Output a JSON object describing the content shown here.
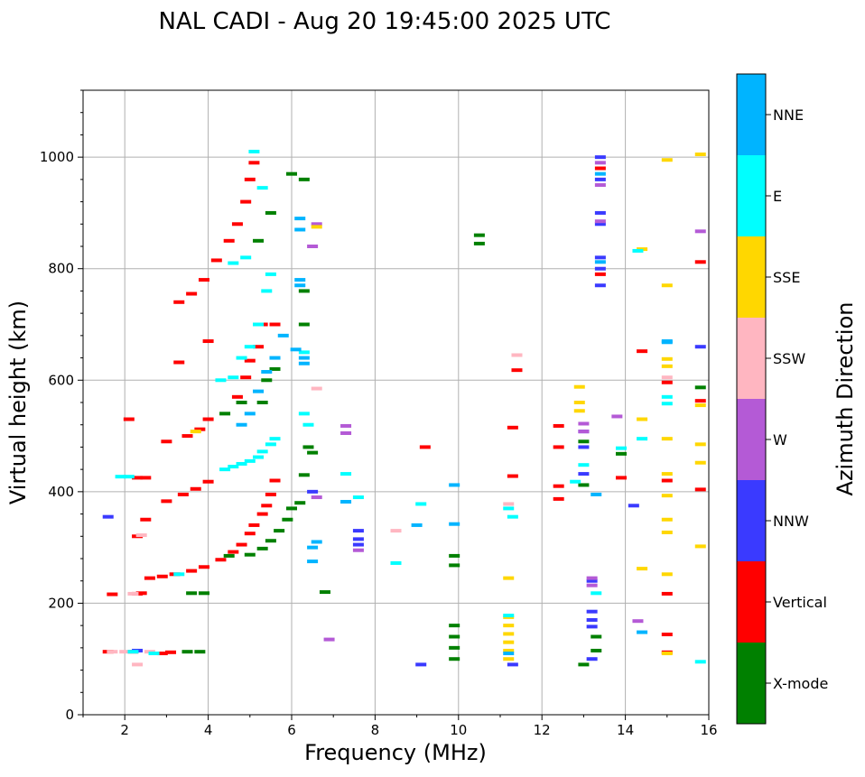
{
  "chart_data": {
    "type": "scatter",
    "title": "NAL CADI - Aug 20 19:45:00 2025 UTC",
    "xlabel": "Frequency (MHz)",
    "ylabel": "Virtual height (km)",
    "xlim": [
      1,
      16
    ],
    "ylim": [
      0,
      1120
    ],
    "xticks": [
      2,
      4,
      6,
      8,
      10,
      12,
      14,
      16
    ],
    "yticks": [
      0,
      200,
      400,
      600,
      800,
      1000
    ],
    "grid": true,
    "colorbar": {
      "label": "Azimuth Direction",
      "legend_position": "right",
      "categories": [
        {
          "name": "X-mode",
          "color": "#008000"
        },
        {
          "name": "Vertical",
          "color": "#ff0000"
        },
        {
          "name": "NNW",
          "color": "#3a3aff"
        },
        {
          "name": "W",
          "color": "#b45ad6"
        },
        {
          "name": "SSW",
          "color": "#ffb6c1"
        },
        {
          "name": "SSE",
          "color": "#ffd700"
        },
        {
          "name": "E",
          "color": "#00ffff"
        },
        {
          "name": "NNE",
          "color": "#00b4ff"
        }
      ]
    },
    "series": [
      {
        "name": "Vertical",
        "color": "#ff0000",
        "points": [
          [
            1.6,
            113
          ],
          [
            2.2,
            113
          ],
          [
            2.9,
            110
          ],
          [
            3.1,
            112
          ],
          [
            1.7,
            216
          ],
          [
            2.3,
            217
          ],
          [
            2.4,
            218
          ],
          [
            2.6,
            245
          ],
          [
            2.9,
            248
          ],
          [
            3.2,
            252
          ],
          [
            3.6,
            258
          ],
          [
            3.9,
            265
          ],
          [
            4.3,
            278
          ],
          [
            4.6,
            292
          ],
          [
            4.8,
            305
          ],
          [
            5.0,
            325
          ],
          [
            5.1,
            340
          ],
          [
            5.3,
            360
          ],
          [
            5.4,
            375
          ],
          [
            5.5,
            395
          ],
          [
            5.6,
            420
          ],
          [
            2.3,
            425
          ],
          [
            2.5,
            425
          ],
          [
            3.0,
            383
          ],
          [
            3.4,
            395
          ],
          [
            3.7,
            405
          ],
          [
            4.0,
            418
          ],
          [
            2.1,
            530
          ],
          [
            3.0,
            490
          ],
          [
            3.5,
            500
          ],
          [
            3.8,
            512
          ],
          [
            4.0,
            530
          ],
          [
            4.7,
            570
          ],
          [
            4.9,
            605
          ],
          [
            5.0,
            635
          ],
          [
            5.2,
            660
          ],
          [
            5.3,
            700
          ],
          [
            5.6,
            700
          ],
          [
            3.3,
            740
          ],
          [
            3.6,
            755
          ],
          [
            3.9,
            780
          ],
          [
            4.2,
            815
          ],
          [
            4.5,
            850
          ],
          [
            4.7,
            880
          ],
          [
            4.9,
            920
          ],
          [
            5.0,
            960
          ],
          [
            5.1,
            990
          ],
          [
            3.3,
            632
          ],
          [
            4.0,
            670
          ],
          [
            2.5,
            350
          ],
          [
            2.3,
            320
          ],
          [
            9.2,
            480
          ],
          [
            11.3,
            515
          ],
          [
            11.4,
            618
          ],
          [
            11.3,
            428
          ],
          [
            12.4,
            480
          ],
          [
            12.4,
            410
          ],
          [
            12.4,
            387
          ],
          [
            12.4,
            518
          ],
          [
            13.4,
            980
          ],
          [
            13.4,
            790
          ],
          [
            13.9,
            425
          ],
          [
            14.4,
            652
          ],
          [
            15.0,
            596
          ],
          [
            15.0,
            420
          ],
          [
            15.0,
            217
          ],
          [
            15.0,
            144
          ],
          [
            15.0,
            112
          ],
          [
            15.8,
            812
          ],
          [
            15.8,
            563
          ],
          [
            15.8,
            404
          ]
        ]
      },
      {
        "name": "X-mode",
        "color": "#008000",
        "points": [
          [
            3.5,
            113
          ],
          [
            3.8,
            113
          ],
          [
            3.6,
            218
          ],
          [
            3.9,
            218
          ],
          [
            4.5,
            285
          ],
          [
            5.0,
            287
          ],
          [
            5.3,
            298
          ],
          [
            5.5,
            312
          ],
          [
            5.7,
            330
          ],
          [
            5.9,
            350
          ],
          [
            6.0,
            370
          ],
          [
            6.2,
            380
          ],
          [
            6.3,
            430
          ],
          [
            6.4,
            480
          ],
          [
            6.5,
            470
          ],
          [
            6.3,
            700
          ],
          [
            6.3,
            760
          ],
          [
            6.3,
            960
          ],
          [
            6.0,
            970
          ],
          [
            5.5,
            900
          ],
          [
            5.2,
            850
          ],
          [
            5.6,
            620
          ],
          [
            5.4,
            600
          ],
          [
            5.3,
            560
          ],
          [
            4.8,
            560
          ],
          [
            4.4,
            540
          ],
          [
            6.8,
            220
          ],
          [
            10.5,
            860
          ],
          [
            10.5,
            845
          ],
          [
            9.9,
            160
          ],
          [
            9.9,
            140
          ],
          [
            9.9,
            120
          ],
          [
            9.9,
            100
          ],
          [
            9.9,
            285
          ],
          [
            9.9,
            268
          ],
          [
            13.0,
            490
          ],
          [
            13.0,
            412
          ],
          [
            13.0,
            90
          ],
          [
            13.3,
            140
          ],
          [
            13.3,
            115
          ],
          [
            13.9,
            468
          ],
          [
            15.8,
            587
          ]
        ]
      },
      {
        "name": "NNW",
        "color": "#3a3aff",
        "points": [
          [
            1.6,
            355
          ],
          [
            2.3,
            115
          ],
          [
            6.5,
            400
          ],
          [
            7.6,
            330
          ],
          [
            7.6,
            315
          ],
          [
            7.6,
            305
          ],
          [
            9.1,
            90
          ],
          [
            11.3,
            90
          ],
          [
            13.2,
            185
          ],
          [
            13.2,
            170
          ],
          [
            13.2,
            158
          ],
          [
            13.2,
            100
          ],
          [
            13.2,
            240
          ],
          [
            13.4,
            1000
          ],
          [
            13.4,
            960
          ],
          [
            13.4,
            900
          ],
          [
            13.4,
            880
          ],
          [
            13.4,
            770
          ],
          [
            13.4,
            800
          ],
          [
            13.4,
            820
          ],
          [
            13.0,
            432
          ],
          [
            13.0,
            508
          ],
          [
            13.0,
            480
          ],
          [
            14.2,
            375
          ],
          [
            15.8,
            660
          ]
        ]
      },
      {
        "name": "W",
        "color": "#b45ad6",
        "points": [
          [
            6.6,
            880
          ],
          [
            6.5,
            840
          ],
          [
            6.6,
            390
          ],
          [
            7.3,
            518
          ],
          [
            7.3,
            505
          ],
          [
            7.6,
            295
          ],
          [
            6.9,
            135
          ],
          [
            13.0,
            522
          ],
          [
            13.0,
            508
          ],
          [
            13.2,
            232
          ],
          [
            13.2,
            245
          ],
          [
            13.4,
            990
          ],
          [
            13.4,
            950
          ],
          [
            13.4,
            885
          ],
          [
            13.8,
            535
          ],
          [
            14.3,
            168
          ],
          [
            15.8,
            867
          ]
        ]
      },
      {
        "name": "SSW",
        "color": "#ffb6c1",
        "points": [
          [
            1.7,
            113
          ],
          [
            2.0,
            113
          ],
          [
            2.6,
            113
          ],
          [
            2.2,
            217
          ],
          [
            2.3,
            90
          ],
          [
            2.4,
            322
          ],
          [
            8.5,
            330
          ],
          [
            6.6,
            585
          ],
          [
            11.4,
            645
          ],
          [
            15.0,
            605
          ],
          [
            11.2,
            378
          ]
        ]
      },
      {
        "name": "SSE",
        "color": "#ffd700",
        "points": [
          [
            3.7,
            508
          ],
          [
            6.6,
            875
          ],
          [
            11.2,
            245
          ],
          [
            11.2,
            175
          ],
          [
            11.2,
            160
          ],
          [
            11.2,
            145
          ],
          [
            11.2,
            130
          ],
          [
            11.2,
            115
          ],
          [
            11.2,
            100
          ],
          [
            12.9,
            588
          ],
          [
            12.9,
            560
          ],
          [
            12.9,
            545
          ],
          [
            14.4,
            835
          ],
          [
            14.4,
            530
          ],
          [
            14.4,
            262
          ],
          [
            15.0,
            995
          ],
          [
            15.0,
            770
          ],
          [
            15.0,
            638
          ],
          [
            15.0,
            625
          ],
          [
            15.0,
            495
          ],
          [
            15.0,
            432
          ],
          [
            15.0,
            393
          ],
          [
            15.0,
            350
          ],
          [
            15.0,
            327
          ],
          [
            15.0,
            252
          ],
          [
            15.0,
            110
          ],
          [
            15.8,
            1005
          ],
          [
            15.8,
            555
          ],
          [
            15.8,
            485
          ],
          [
            15.8,
            452
          ],
          [
            15.8,
            302
          ]
        ]
      },
      {
        "name": "E",
        "color": "#00ffff",
        "points": [
          [
            1.9,
            427
          ],
          [
            2.1,
            427
          ],
          [
            2.2,
            113
          ],
          [
            2.7,
            110
          ],
          [
            3.3,
            252
          ],
          [
            4.4,
            440
          ],
          [
            4.6,
            445
          ],
          [
            4.8,
            450
          ],
          [
            5.0,
            455
          ],
          [
            5.2,
            462
          ],
          [
            5.3,
            472
          ],
          [
            5.5,
            485
          ],
          [
            5.6,
            495
          ],
          [
            4.3,
            600
          ],
          [
            4.6,
            605
          ],
          [
            4.8,
            640
          ],
          [
            5.0,
            660
          ],
          [
            5.2,
            700
          ],
          [
            5.4,
            760
          ],
          [
            5.5,
            790
          ],
          [
            5.1,
            1010
          ],
          [
            4.9,
            820
          ],
          [
            4.6,
            810
          ],
          [
            5.3,
            945
          ],
          [
            6.3,
            650
          ],
          [
            6.3,
            540
          ],
          [
            6.4,
            520
          ],
          [
            7.3,
            432
          ],
          [
            7.6,
            390
          ],
          [
            8.5,
            272
          ],
          [
            9.1,
            378
          ],
          [
            11.2,
            370
          ],
          [
            11.3,
            355
          ],
          [
            11.2,
            178
          ],
          [
            12.8,
            418
          ],
          [
            13.0,
            448
          ],
          [
            13.3,
            218
          ],
          [
            13.9,
            478
          ],
          [
            14.3,
            832
          ],
          [
            14.4,
            495
          ],
          [
            15.0,
            570
          ],
          [
            15.0,
            558
          ],
          [
            15.8,
            95
          ]
        ]
      },
      {
        "name": "NNE",
        "color": "#00b4ff",
        "points": [
          [
            4.8,
            520
          ],
          [
            5.0,
            540
          ],
          [
            5.2,
            580
          ],
          [
            5.4,
            615
          ],
          [
            5.6,
            640
          ],
          [
            5.8,
            680
          ],
          [
            6.1,
            655
          ],
          [
            6.2,
            890
          ],
          [
            6.2,
            870
          ],
          [
            6.2,
            780
          ],
          [
            6.2,
            770
          ],
          [
            6.3,
            640
          ],
          [
            6.3,
            630
          ],
          [
            6.5,
            300
          ],
          [
            6.5,
            275
          ],
          [
            6.6,
            310
          ],
          [
            7.3,
            382
          ],
          [
            9.0,
            340
          ],
          [
            9.9,
            412
          ],
          [
            9.9,
            342
          ],
          [
            11.2,
            110
          ],
          [
            13.3,
            395
          ],
          [
            13.4,
            970
          ],
          [
            13.4,
            812
          ],
          [
            14.4,
            148
          ],
          [
            15.0,
            668
          ],
          [
            15.0,
            670
          ]
        ]
      }
    ]
  }
}
